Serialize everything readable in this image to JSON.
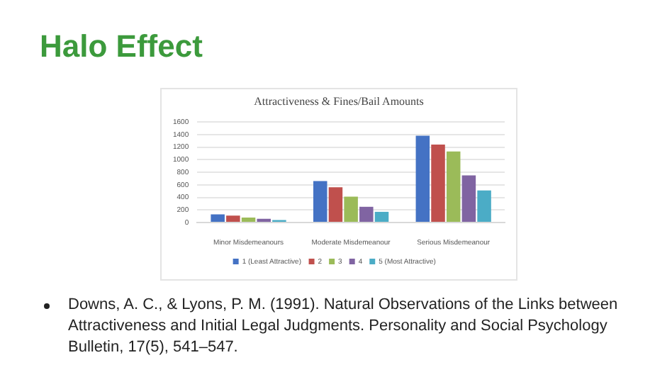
{
  "chart_data": {
    "type": "bar",
    "title": "Halo Effect",
    "subtitle": "Attractiveness & Fines/Bail Amounts",
    "categories": [
      "Minor Misdemeanours",
      "Moderate Misdemeanour",
      "Serious Misdemeanour"
    ],
    "series": [
      {
        "name": "1 (Least Attractive)",
        "color": "#4472c4",
        "values": [
          130,
          660,
          1380
        ]
      },
      {
        "name": "2",
        "color": "#c0504d",
        "values": [
          110,
          560,
          1240
        ]
      },
      {
        "name": "3",
        "color": "#9bbb59",
        "values": [
          80,
          410,
          1130
        ]
      },
      {
        "name": "4",
        "color": "#8064a2",
        "values": [
          60,
          250,
          750
        ]
      },
      {
        "name": "5 (Most Attractive)",
        "color": "#4bacc6",
        "values": [
          40,
          170,
          510
        ]
      }
    ],
    "ylim": [
      0,
      1600
    ],
    "yticks": [
      0,
      200,
      400,
      600,
      800,
      1000,
      1200,
      1400,
      1600
    ],
    "grid": "y",
    "legend": "bottom",
    "annotations": [
      "Downs, A. C., & Lyons, P. M. (1991). Natural Observations of the Links between Attractiveness and Initial Legal Judgments. Personality and Social Psychology Bulletin, 17(5), 541–547."
    ]
  }
}
